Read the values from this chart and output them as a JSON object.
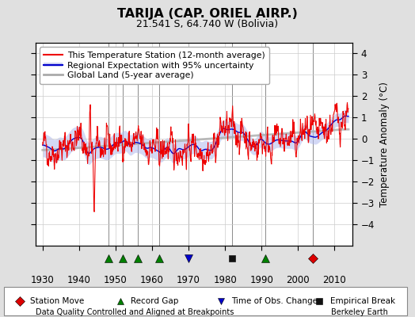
{
  "title": "TARIJA (CAP. ORIEL AIRP.)",
  "subtitle": "21.541 S, 64.740 W (Bolivia)",
  "ylabel": "Temperature Anomaly (°C)",
  "xlim": [
    1928,
    2015
  ],
  "ylim": [
    -5.0,
    4.5
  ],
  "yticks": [
    -4,
    -3,
    -2,
    -1,
    0,
    1,
    2,
    3,
    4
  ],
  "xticks": [
    1930,
    1940,
    1950,
    1960,
    1970,
    1980,
    1990,
    2000,
    2010
  ],
  "red_line_color": "#EE0000",
  "blue_line_color": "#0000CC",
  "blue_shade_color": "#B0B8EE",
  "gray_line_color": "#AAAAAA",
  "bg_color": "#E0E0E0",
  "plot_bg_color": "#FFFFFF",
  "event_markers": [
    {
      "type": "station_move",
      "year": 2004,
      "color": "#DD0000",
      "marker": "D",
      "size": 6
    },
    {
      "type": "record_gap",
      "year": 1948,
      "color": "#008000",
      "marker": "^",
      "size": 7
    },
    {
      "type": "record_gap",
      "year": 1952,
      "color": "#008000",
      "marker": "^",
      "size": 7
    },
    {
      "type": "record_gap",
      "year": 1956,
      "color": "#008000",
      "marker": "^",
      "size": 7
    },
    {
      "type": "record_gap",
      "year": 1962,
      "color": "#008000",
      "marker": "^",
      "size": 7
    },
    {
      "type": "record_gap",
      "year": 1991,
      "color": "#008000",
      "marker": "^",
      "size": 7
    },
    {
      "type": "empirical_break",
      "year": 1982,
      "color": "#111111",
      "marker": "s",
      "size": 6
    },
    {
      "type": "time_obs",
      "year": 1970,
      "color": "#0000CC",
      "marker": "v",
      "size": 7
    }
  ],
  "legend_labels": [
    "This Temperature Station (12-month average)",
    "Regional Expectation with 95% uncertainty",
    "Global Land (5-year average)"
  ],
  "bottom_legend": [
    {
      "label": "Station Move",
      "marker": "D",
      "color": "#DD0000"
    },
    {
      "label": "Record Gap",
      "marker": "^",
      "color": "#008000"
    },
    {
      "label": "Time of Obs. Change",
      "marker": "v",
      "color": "#0000CC"
    },
    {
      "label": "Empirical Break",
      "marker": "s",
      "color": "#111111"
    }
  ],
  "footer_left": "Data Quality Controlled and Aligned at Breakpoints",
  "footer_right": "Berkeley Earth"
}
